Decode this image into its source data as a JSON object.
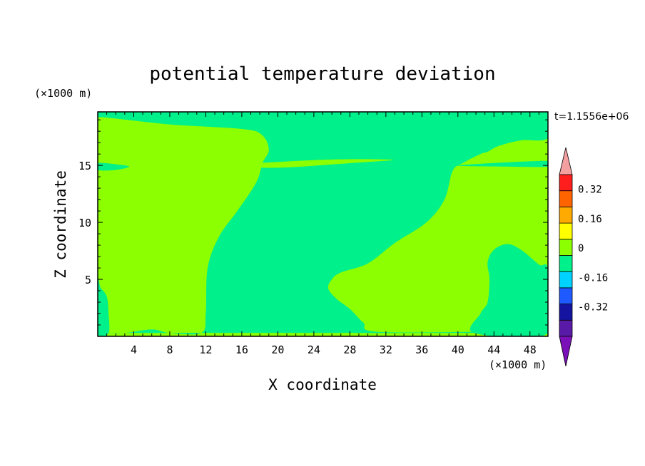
{
  "chart_data": {
    "type": "heatmap",
    "title": "potential temperature deviation",
    "xlabel": "X coordinate",
    "ylabel": "Z coordinate",
    "x_unit": "(×1000 m)",
    "y_unit": "(×1000 m)",
    "time_label": "t=1.1556e+06",
    "xlim": [
      0,
      50
    ],
    "ylim": [
      0,
      19.7
    ],
    "x_ticks": [
      4,
      8,
      12,
      16,
      20,
      24,
      28,
      32,
      36,
      40,
      44,
      48
    ],
    "y_ticks": [
      5,
      10,
      15
    ],
    "colorbar": {
      "levels": [
        -0.48,
        -0.4,
        -0.32,
        -0.24,
        -0.16,
        -0.08,
        0,
        0.08,
        0.16,
        0.24,
        0.32,
        0.4
      ],
      "colors": [
        "#5a1aa8",
        "#1414a0",
        "#1e5aff",
        "#00d2ff",
        "#00f08c",
        "#8cff00",
        "#ffff00",
        "#ffaa00",
        "#ff6400",
        "#ff1e1e"
      ],
      "under_color": "#7a10b8",
      "over_color": "#f4a0a0",
      "labels": [
        "-0.32",
        "-0.16",
        "0",
        "0.16",
        "0.32"
      ]
    },
    "background_color": "#8cff00",
    "regions": [
      {
        "name": "negative-band",
        "color": "#00f08c",
        "outline": [
          [
            0,
            0.3
          ],
          [
            3,
            0.3
          ],
          [
            6,
            0.6
          ],
          [
            8,
            0.3
          ],
          [
            11.5,
            0.3
          ],
          [
            12,
            2
          ],
          [
            12.2,
            6
          ],
          [
            13.5,
            8.8
          ],
          [
            15.5,
            11
          ],
          [
            17.6,
            13.5
          ],
          [
            18.3,
            15.2
          ],
          [
            19,
            16.4
          ],
          [
            18.2,
            17.7
          ],
          [
            16,
            18.2
          ],
          [
            8,
            18.6
          ],
          [
            1,
            19.2
          ],
          [
            0,
            19.2
          ],
          [
            0,
            19.7
          ],
          [
            50,
            19.7
          ],
          [
            50,
            17.4
          ],
          [
            47,
            17.2
          ],
          [
            44.5,
            16.7
          ],
          [
            43.3,
            16.2
          ],
          [
            42.5,
            16.0
          ],
          [
            40.5,
            15.2
          ],
          [
            39.4,
            14.5
          ],
          [
            38.5,
            12
          ],
          [
            36.5,
            10
          ],
          [
            33,
            8.2
          ],
          [
            30,
            6.4
          ],
          [
            27,
            5.6
          ],
          [
            26,
            5.0
          ],
          [
            25.6,
            4.2
          ],
          [
            26.5,
            3.3
          ],
          [
            28,
            2.4
          ],
          [
            29.5,
            1.2
          ],
          [
            31,
            0.4
          ],
          [
            43,
            0.4
          ],
          [
            41.5,
            0.3
          ]
        ]
      },
      {
        "name": "right-cell",
        "color": "#00f08c",
        "outline": [
          [
            41.8,
            0.3
          ],
          [
            42.5,
            2
          ],
          [
            43.3,
            3
          ],
          [
            43.5,
            5
          ],
          [
            43.3,
            6.5
          ],
          [
            44,
            7.6
          ],
          [
            45.5,
            8.1
          ],
          [
            47,
            7.6
          ],
          [
            49,
            6.3
          ],
          [
            50,
            5.8
          ],
          [
            50,
            0.3
          ]
        ]
      },
      {
        "name": "left-edge",
        "color": "#00f08c",
        "outline": [
          [
            0,
            0.3
          ],
          [
            1.2,
            0.3
          ],
          [
            1.2,
            2
          ],
          [
            1,
            3.5
          ],
          [
            0.3,
            4.3
          ],
          [
            0,
            5
          ]
        ]
      },
      {
        "name": "thin-streak",
        "color": "#8cff00",
        "outline": [
          [
            14.7,
            15.0
          ],
          [
            25,
            15.5
          ],
          [
            32.8,
            15.5
          ],
          [
            28,
            15.2
          ],
          [
            20,
            14.8
          ]
        ]
      },
      {
        "name": "left-streak",
        "color": "#00f08c",
        "outline": [
          [
            0,
            15.2
          ],
          [
            2,
            15.1
          ],
          [
            3.5,
            14.9
          ],
          [
            2,
            14.6
          ],
          [
            0,
            14.6
          ]
        ]
      },
      {
        "name": "right-streak",
        "color": "#00f08c",
        "outline": [
          [
            40,
            15.0
          ],
          [
            50,
            15.4
          ],
          [
            50,
            14.9
          ],
          [
            45,
            14.9
          ]
        ]
      }
    ]
  }
}
